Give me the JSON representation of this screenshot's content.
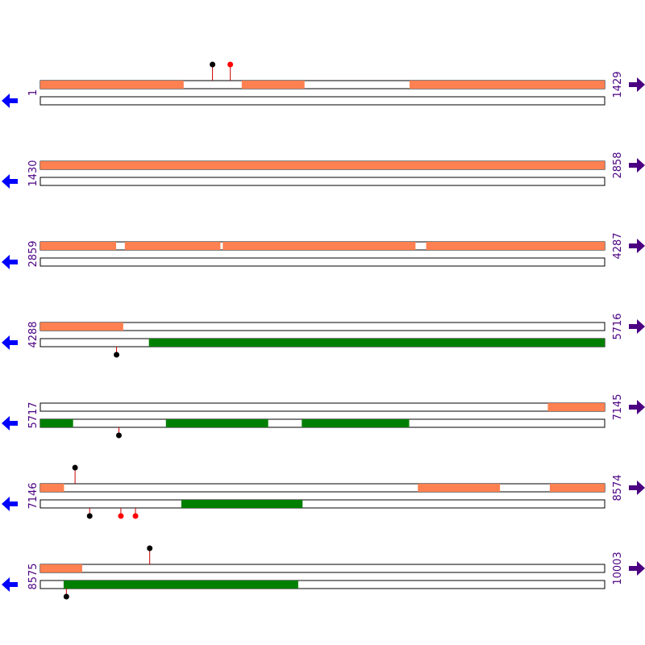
{
  "colors": {
    "forward_feature": "#ff8050",
    "reverse_feature": "#007f00",
    "strand_outline": "#000000",
    "marker_stem": "#cc0000",
    "marker_black": "#000000",
    "marker_red": "#ff0000",
    "left_arrow": "#0000ff",
    "right_arrow": "#4b0082",
    "position_label": "#4b0082"
  },
  "icons": {
    "left": "arrow-left-icon",
    "right": "arrow-right-icon"
  },
  "sequence_map": {
    "rows": [
      {
        "start": 1,
        "end": 1429,
        "start_label": "1",
        "end_label": "1429",
        "forward_features": [
          [
            1,
            363
          ],
          [
            511,
            669
          ],
          [
            936,
            1000
          ],
          [
            1000,
            1429
          ]
        ],
        "reverse_features": [],
        "markers": [
          {
            "strand": "forward",
            "pos": 437,
            "color": "black"
          },
          {
            "strand": "forward",
            "pos": 482,
            "color": "red"
          }
        ]
      },
      {
        "start": 1430,
        "end": 2858,
        "start_label": "1430",
        "end_label": "2858",
        "forward_features": [
          [
            1430,
            2858
          ]
        ],
        "reverse_features": [],
        "markers": []
      },
      {
        "start": 2859,
        "end": 4287,
        "start_label": "2859",
        "end_label": "4287",
        "forward_features": [
          [
            2859,
            3050
          ],
          [
            3073,
            3314
          ],
          [
            3321,
            3808
          ],
          [
            3836,
            4287
          ]
        ],
        "reverse_features": [],
        "markers": []
      },
      {
        "start": 4288,
        "end": 5716,
        "start_label": "4288",
        "end_label": "5716",
        "forward_features": [
          [
            4288,
            4497
          ]
        ],
        "reverse_features": [
          [
            4563,
            5716
          ]
        ],
        "markers": [
          {
            "strand": "reverse",
            "pos": 4481,
            "color": "black"
          }
        ]
      },
      {
        "start": 5717,
        "end": 7145,
        "start_label": "5717",
        "end_label": "7145",
        "forward_features": [
          [
            7002,
            7145
          ]
        ],
        "reverse_features": [
          [
            5717,
            5799
          ],
          [
            6035,
            6293
          ],
          [
            6379,
            6650
          ]
        ],
        "markers": [
          {
            "strand": "reverse",
            "pos": 5916,
            "color": "black"
          }
        ]
      },
      {
        "start": 7146,
        "end": 8574,
        "start_label": "7146",
        "end_label": "8574",
        "forward_features": [
          [
            7146,
            7205
          ],
          [
            8102,
            8309
          ],
          [
            8436,
            8574
          ]
        ],
        "reverse_features": [
          [
            7503,
            7809
          ]
        ],
        "markers": [
          {
            "strand": "forward",
            "pos": 7234,
            "color": "black"
          },
          {
            "strand": "reverse",
            "pos": 7271,
            "color": "black"
          },
          {
            "strand": "reverse",
            "pos": 7350,
            "color": "red"
          },
          {
            "strand": "reverse",
            "pos": 7387,
            "color": "red"
          }
        ]
      },
      {
        "start": 8575,
        "end": 10003,
        "start_label": "8575",
        "end_label": "10003",
        "forward_features": [
          [
            8575,
            8680
          ]
        ],
        "reverse_features": [
          [
            8634,
            9227
          ]
        ],
        "markers": [
          {
            "strand": "forward",
            "pos": 8852,
            "color": "black"
          },
          {
            "strand": "reverse",
            "pos": 8641,
            "color": "black"
          }
        ]
      }
    ]
  }
}
